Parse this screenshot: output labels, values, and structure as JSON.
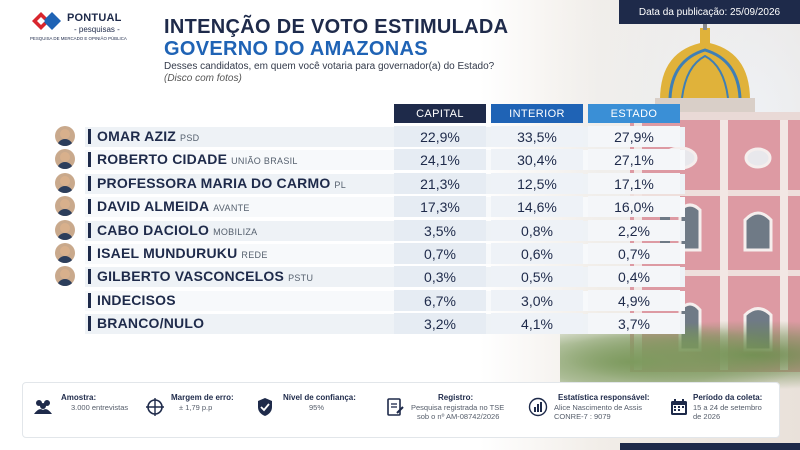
{
  "date_badge": "Data da publicação: 25/09/2026",
  "logo": {
    "name": "PONTUAL",
    "sub": "- pesquisas -",
    "tagline": "PESQUISA DE MERCADO E OPINIÃO PÚBLICA"
  },
  "title_line1": "INTENÇÃO DE VOTO ESTIMULADA",
  "title_line2": "GOVERNO DO AMAZONAS",
  "question": "Desses candidatos, em quem você votaria para governador(a) do Estado?",
  "question_note": "(Disco com fotos)",
  "colors": {
    "navy": "#1e2a4a",
    "blue": "#1f63b5",
    "light_blue": "#3a8fd6"
  },
  "chart_data": {
    "type": "table",
    "title": "INTENÇÃO DE VOTO ESTIMULADA",
    "subtitle": "GOVERNO DO AMAZONAS",
    "columns": [
      "CAPITAL",
      "INTERIOR",
      "ESTADO"
    ],
    "rows": [
      {
        "name": "OMAR AZIZ",
        "party": "PSD",
        "photo": true,
        "values": [
          "22,9%",
          "33,5%",
          "27,9%"
        ]
      },
      {
        "name": "ROBERTO CIDADE",
        "party": "UNIÃO BRASIL",
        "photo": true,
        "values": [
          "24,1%",
          "30,4%",
          "27,1%"
        ]
      },
      {
        "name": "PROFESSORA MARIA DO CARMO",
        "party": "PL",
        "photo": true,
        "values": [
          "21,3%",
          "12,5%",
          "17,1%"
        ]
      },
      {
        "name": "DAVID ALMEIDA",
        "party": "AVANTE",
        "photo": true,
        "values": [
          "17,3%",
          "14,6%",
          "16,0%"
        ]
      },
      {
        "name": "CABO DACIOLO",
        "party": "MOBILIZA",
        "photo": true,
        "values": [
          "3,5%",
          "0,8%",
          "2,2%"
        ]
      },
      {
        "name": "ISAEL MUNDURUKU",
        "party": "REDE",
        "photo": true,
        "values": [
          "0,7%",
          "0,6%",
          "0,7%"
        ]
      },
      {
        "name": "GILBERTO VASCONCELOS",
        "party": "PSTU",
        "photo": true,
        "values": [
          "0,3%",
          "0,5%",
          "0,4%"
        ]
      },
      {
        "name": "INDECISOS",
        "party": "",
        "photo": false,
        "values": [
          "6,7%",
          "3,0%",
          "4,9%"
        ]
      },
      {
        "name": "BRANCO/NULO",
        "party": "",
        "photo": false,
        "values": [
          "3,2%",
          "4,1%",
          "3,7%"
        ]
      }
    ]
  },
  "footer": {
    "sample_label": "Amostra:",
    "sample_value": "3.000 entrevistas",
    "margin_label": "Margem de erro:",
    "margin_value": "± 1,79 p.p",
    "confidence_label": "Nível de confiança:",
    "confidence_value": "95%",
    "registration_label": "Registro:",
    "registration_line1": "Pesquisa registrada no TSE",
    "registration_line2": "sob o nº AM-08742/2026",
    "statistician_label": "Estatística responsável:",
    "statistician_line1": "Alice Nascimento de Assis",
    "statistician_line2": "CONRE-7 : 9079",
    "period_label": "Período da coleta:",
    "period_line1": "15 a 24 de setembro",
    "period_line2": "de 2026"
  }
}
